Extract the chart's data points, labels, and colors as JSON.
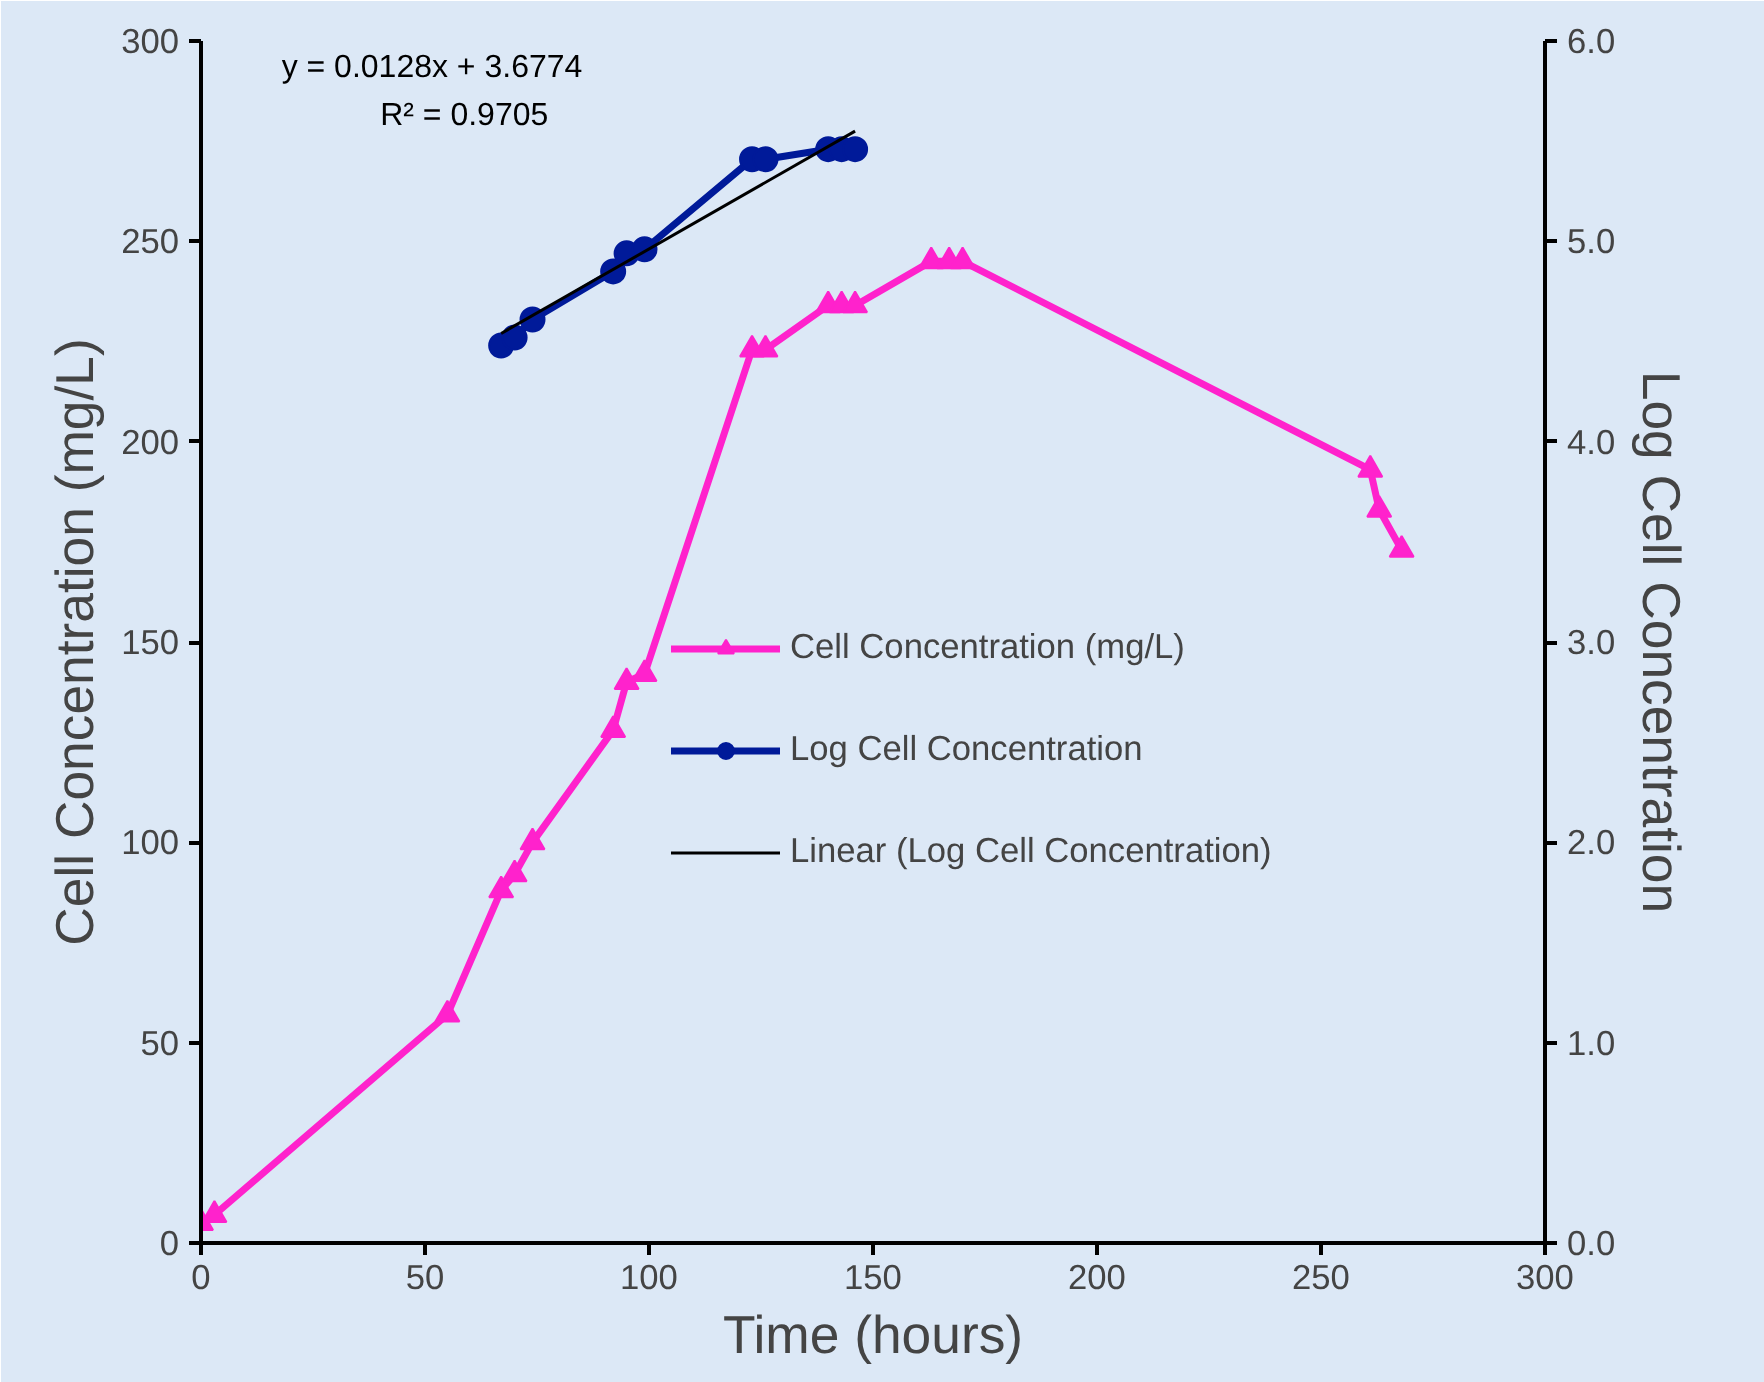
{
  "chart_data": {
    "type": "line",
    "xlabel": "Time (hours)",
    "ylabel": "Cell Concentration (mg/L)",
    "y2label": "Log Cell Concentration",
    "xlim": [
      0,
      300
    ],
    "xticks": [
      0,
      50,
      100,
      150,
      200,
      250,
      300
    ],
    "ylim": [
      0,
      300
    ],
    "yticks": [
      0,
      50,
      100,
      150,
      200,
      250,
      300
    ],
    "y2lim": [
      0,
      6
    ],
    "y2ticks": [
      {
        "value": 0,
        "label": "0.0"
      },
      {
        "value": 1,
        "label": "1.0"
      },
      {
        "value": 2,
        "label": "2.0"
      },
      {
        "value": 3,
        "label": "3.0"
      },
      {
        "value": 4,
        "label": "4.0"
      },
      {
        "value": 5,
        "label": "5.0"
      },
      {
        "value": 6,
        "label": "6.0"
      }
    ],
    "grid": false,
    "legend": "right",
    "annotations": [
      "y = 0.0128x + 3.6774",
      "R² = 0.9705"
    ],
    "series": [
      {
        "name": "Cell Concentration (mg/L)",
        "color": "#ff22cc",
        "marker": "triangle",
        "x": [
          0,
          3,
          55,
          67,
          70,
          74,
          92,
          95,
          99,
          123,
          126,
          140,
          143,
          146,
          163,
          167,
          170,
          261,
          263,
          268
        ],
        "values": [
          5,
          7,
          57,
          88,
          92,
          100,
          128,
          140,
          142,
          223,
          223,
          234,
          234,
          234,
          245,
          245,
          245,
          193,
          183,
          173
        ]
      },
      {
        "name": "Log Cell Concentration",
        "color": "#001a99",
        "marker": "circle",
        "axis": "y2",
        "x": [
          67,
          70,
          74,
          92,
          95,
          99,
          123,
          126,
          140,
          143,
          146
        ],
        "values": [
          4.48,
          4.52,
          4.61,
          4.85,
          4.94,
          4.96,
          5.41,
          5.41,
          5.46,
          5.46,
          5.46
        ]
      },
      {
        "name": "Linear (Log Cell Concentration)",
        "color": "#000000",
        "marker": "none",
        "axis": "y2",
        "x": [
          67,
          146
        ],
        "values": [
          4.54,
          5.55
        ]
      }
    ]
  }
}
